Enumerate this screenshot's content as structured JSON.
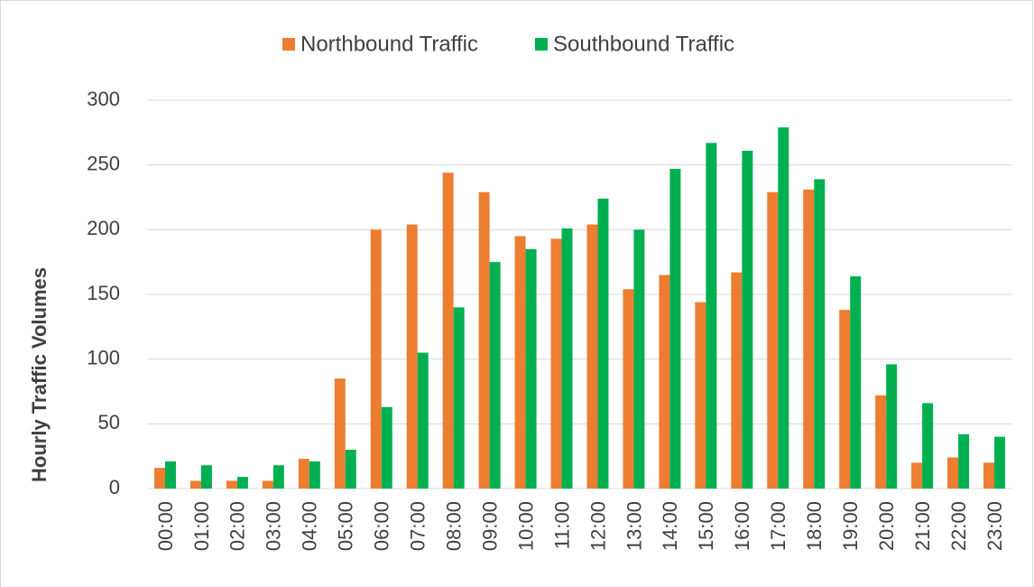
{
  "chart_data": {
    "type": "bar",
    "y_label": "Hourly Traffic Volumes",
    "categories": [
      "00:00",
      "01:00",
      "02:00",
      "03:00",
      "04:00",
      "05:00",
      "06:00",
      "07:00",
      "08:00",
      "09:00",
      "10:00",
      "11:00",
      "12:00",
      "13:00",
      "14:00",
      "15:00",
      "16:00",
      "17:00",
      "18:00",
      "19:00",
      "20:00",
      "21:00",
      "22:00",
      "23:00"
    ],
    "series": [
      {
        "name": "Northbound Traffic",
        "color": "#ED7D31",
        "values": [
          16,
          6,
          6,
          6,
          23,
          85,
          200,
          204,
          244,
          229,
          195,
          193,
          204,
          154,
          165,
          144,
          167,
          229,
          231,
          138,
          72,
          20,
          24,
          20
        ]
      },
      {
        "name": "Southbound Traffic",
        "color": "#00B050",
        "values": [
          21,
          18,
          9,
          18,
          21,
          30,
          63,
          105,
          140,
          175,
          185,
          201,
          224,
          200,
          247,
          267,
          261,
          279,
          239,
          164,
          96,
          66,
          42,
          40
        ]
      }
    ],
    "ylim": [
      0,
      300
    ],
    "yticks": [
      0,
      50,
      100,
      150,
      200,
      250,
      300
    ],
    "grid": true,
    "legend": "top"
  }
}
